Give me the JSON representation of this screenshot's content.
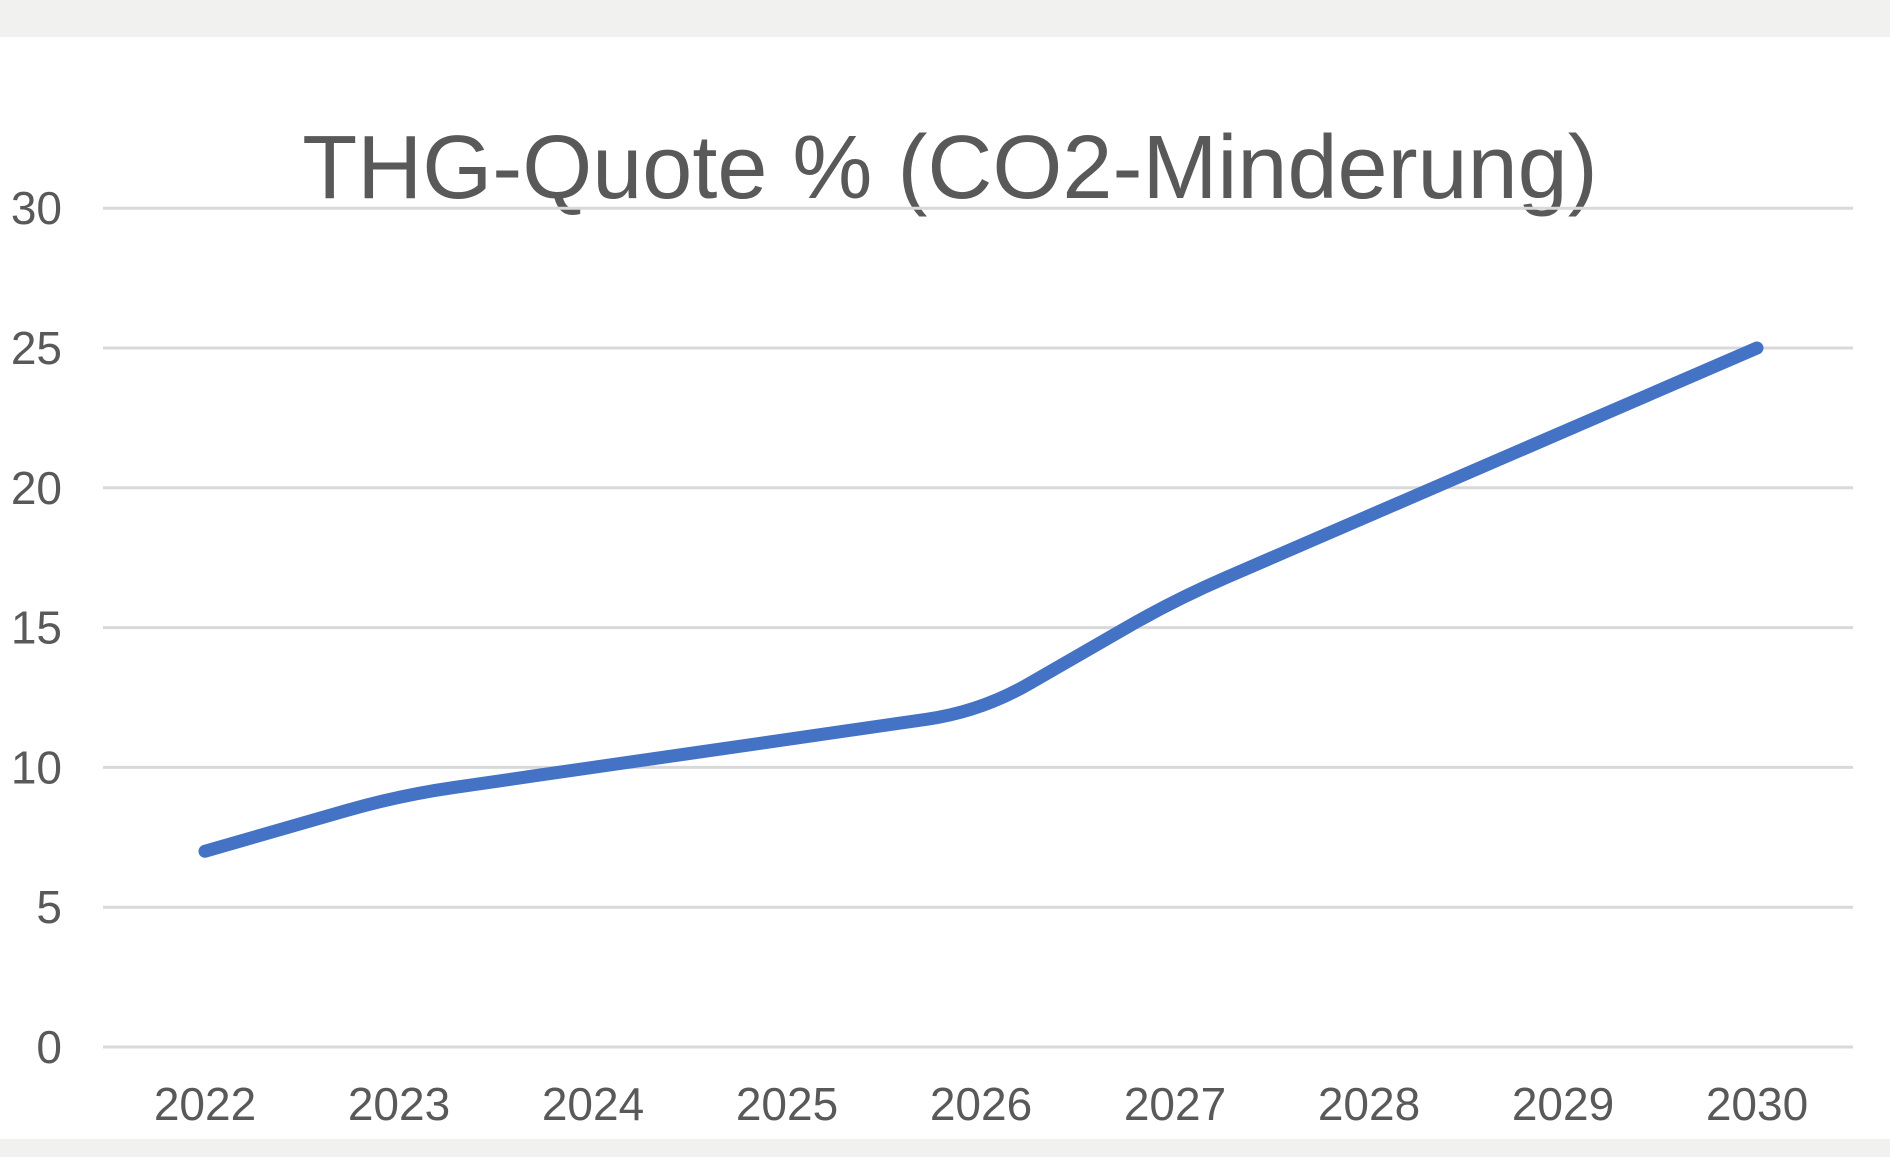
{
  "chart_data": {
    "type": "line",
    "title": "THG-Quote % (CO2-Minderung)",
    "categories": [
      "2022",
      "2023",
      "2024",
      "2025",
      "2026",
      "2027",
      "2028",
      "2029",
      "2030"
    ],
    "values": [
      7,
      9,
      10,
      11,
      12,
      16,
      19,
      22,
      25
    ],
    "xlabel": "",
    "ylabel": "",
    "ylim": [
      0,
      30
    ],
    "yticks": [
      0,
      5,
      10,
      15,
      20,
      25,
      30
    ],
    "grid": true,
    "legend": "none",
    "line_smoothing": true
  },
  "colors": {
    "line": "#4472C4",
    "gridline": "#D9D9D9",
    "tick_text": "#595959",
    "title_text": "#595959",
    "plot_background": "#FFFFFF",
    "frame_band": "#F1F1F0"
  }
}
